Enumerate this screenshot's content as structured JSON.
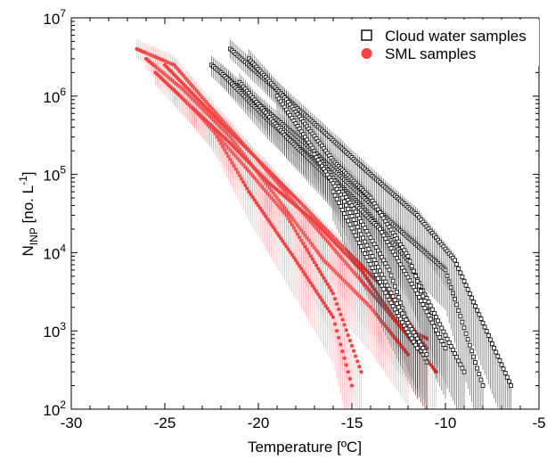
{
  "chart_data": {
    "type": "scatter",
    "title": "",
    "xlabel": "Temperature [ºC]",
    "ylabel": {
      "base": "N",
      "sub": "INP",
      "rest": " [no. L",
      "sup": "-1",
      "end": "]"
    },
    "xlim": [
      -30,
      -5
    ],
    "ylim": [
      100,
      10000000
    ],
    "yscale": "log",
    "grid": false,
    "legend_position": "top-right",
    "x_ticks": [
      -30,
      -25,
      -20,
      -15,
      -10,
      -5
    ],
    "x_tick_labels": [
      "-30",
      "-25",
      "-20",
      "-15",
      "-10",
      "-5"
    ],
    "y_ticks": [
      100,
      1000,
      10000,
      100000,
      1000000,
      10000000
    ],
    "y_tick_labels": [
      {
        "base": "10",
        "exp": "2"
      },
      {
        "base": "10",
        "exp": "3"
      },
      {
        "base": "10",
        "exp": "4"
      },
      {
        "base": "10",
        "exp": "5"
      },
      {
        "base": "10",
        "exp": "6"
      },
      {
        "base": "10",
        "exp": "7"
      }
    ],
    "series": [
      {
        "name": "Cloud water samples",
        "marker": "open-square",
        "color": "#000000",
        "error_color": "#333333",
        "curves": [
          {
            "x": [
              -22.5,
              -20,
              -17.5,
              -15,
              -12.5,
              -10,
              -8
            ],
            "y": [
              2500000,
              800000,
              250000,
              70000,
              20000,
              6000,
              200
            ]
          },
          {
            "x": [
              -22,
              -19.5,
              -17,
              -14.5,
              -12,
              -10.5,
              -9
            ],
            "y": [
              2000000,
              500000,
              150000,
              40000,
              8000,
              1500,
              300
            ]
          },
          {
            "x": [
              -21.5,
              -19,
              -16.5,
              -14,
              -11.5,
              -9.5,
              -6.5
            ],
            "y": [
              4000000,
              1200000,
              350000,
              100000,
              30000,
              8000,
              200
            ]
          },
          {
            "x": [
              -20.5,
              -18.5,
              -16,
              -14,
              -12,
              -10.5
            ],
            "y": [
              3000000,
              900000,
              150000,
              50000,
              9000,
              1000
            ]
          },
          {
            "x": [
              -21,
              -18.5,
              -16,
              -13.5,
              -11.5,
              -10
            ],
            "y": [
              1500000,
              300000,
              80000,
              20000,
              3000,
              600
            ]
          },
          {
            "x": [
              -19,
              -17,
              -15,
              -13,
              -12,
              -11
            ],
            "y": [
              1000000,
              200000,
              40000,
              6000,
              1200,
              400
            ]
          },
          {
            "x": [
              -17,
              -15.5,
              -14,
              -12.5,
              -11
            ],
            "y": [
              180000,
              50000,
              10000,
              2000,
              500
            ]
          },
          {
            "x": [
              -16,
              -14.5,
              -13,
              -11.5
            ],
            "y": [
              60000,
              12000,
              2500,
              600
            ]
          }
        ]
      },
      {
        "name": "SML samples",
        "marker": "filled-circle",
        "color": "#f04444",
        "error_color": "#f59a9a",
        "curves": [
          {
            "x": [
              -26.5,
              -24.5,
              -22.5,
              -20,
              -17.5,
              -15,
              -12.5,
              -11
            ],
            "y": [
              4000000,
              2500000,
              700000,
              150000,
              30000,
              6000,
              1200,
              800
            ]
          },
          {
            "x": [
              -26,
              -24,
              -21.5,
              -19,
              -16.5,
              -14,
              -12
            ],
            "y": [
              3000000,
              1200000,
              300000,
              50000,
              8000,
              2000,
              500
            ]
          },
          {
            "x": [
              -25.5,
              -23.5,
              -21,
              -18.5,
              -16,
              -14.5
            ],
            "y": [
              2000000,
              700000,
              150000,
              30000,
              3000,
              300
            ]
          },
          {
            "x": [
              -24.5,
              -22.5,
              -20.5,
              -18,
              -16,
              -15
            ],
            "y": [
              1200000,
              400000,
              60000,
              8000,
              1500,
              200
            ]
          },
          {
            "x": [
              -25,
              -23,
              -20.5,
              -18,
              -15.5,
              -13,
              -11
            ],
            "y": [
              2500000,
              800000,
              200000,
              50000,
              12000,
              3000,
              600
            ]
          },
          {
            "x": [
              -23.5,
              -21.5,
              -19.5,
              -17,
              -14.5,
              -12.5,
              -10.5
            ],
            "y": [
              700000,
              250000,
              80000,
              25000,
              6000,
              1200,
              300
            ]
          }
        ]
      }
    ]
  }
}
